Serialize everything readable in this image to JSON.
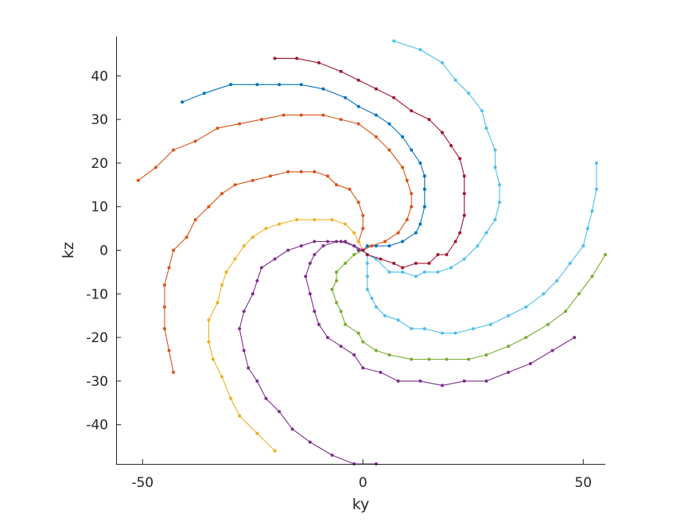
{
  "chart_data": {
    "type": "line",
    "title": "",
    "xlabel": "ky",
    "ylabel": "kz",
    "xlim": [
      -56,
      55
    ],
    "ylim": [
      -49,
      49
    ],
    "xticks": [
      -50,
      0,
      50
    ],
    "yticks": [
      -40,
      -30,
      -20,
      -10,
      0,
      10,
      20,
      30,
      40
    ],
    "grid": false,
    "legend": "none",
    "series": [
      {
        "color": "#0072BD",
        "points": [
          [
            0,
            0
          ],
          [
            1,
            1
          ],
          [
            3,
            1
          ],
          [
            6,
            1
          ],
          [
            9,
            2
          ],
          [
            12,
            4
          ],
          [
            13,
            6
          ],
          [
            14,
            10
          ],
          [
            14,
            14
          ],
          [
            14,
            17
          ],
          [
            13,
            20
          ],
          [
            11,
            23
          ],
          [
            9,
            26
          ],
          [
            6,
            29
          ],
          [
            3,
            31
          ],
          [
            -1,
            33
          ],
          [
            -4,
            35
          ],
          [
            -9,
            37
          ],
          [
            -14,
            38
          ],
          [
            -19,
            38
          ],
          [
            -24,
            38
          ],
          [
            -30,
            38
          ],
          [
            -36,
            36
          ],
          [
            -41,
            34
          ]
        ]
      },
      {
        "color": "#D95319",
        "points": [
          [
            0,
            0
          ],
          [
            2,
            1
          ],
          [
            5,
            2
          ],
          [
            8,
            4
          ],
          [
            10,
            7
          ],
          [
            11,
            10
          ],
          [
            11,
            13
          ],
          [
            10,
            16
          ],
          [
            9,
            19
          ],
          [
            6,
            23
          ],
          [
            3,
            26
          ],
          [
            -1,
            29
          ],
          [
            -5,
            30
          ],
          [
            -9,
            31
          ],
          [
            -14,
            31
          ],
          [
            -18,
            31
          ],
          [
            -23,
            30
          ],
          [
            -28,
            29
          ],
          [
            -33,
            28
          ],
          [
            -38,
            25
          ],
          [
            -43,
            23
          ],
          [
            -47,
            19
          ],
          [
            -51,
            16
          ]
        ]
      },
      {
        "color": "#D95319",
        "points": [
          [
            0,
            0
          ],
          [
            -1,
            2
          ],
          [
            0,
            5
          ],
          [
            0,
            8
          ],
          [
            -1,
            11
          ],
          [
            -3,
            14
          ],
          [
            -6,
            15
          ],
          [
            -8,
            17
          ],
          [
            -11,
            18
          ],
          [
            -14,
            18
          ],
          [
            -17,
            18
          ],
          [
            -21,
            17
          ],
          [
            -25,
            16
          ],
          [
            -29,
            15
          ],
          [
            -32,
            13
          ],
          [
            -35,
            10
          ],
          [
            -38,
            7
          ],
          [
            -40,
            3
          ],
          [
            -43,
            0
          ],
          [
            -44,
            -4
          ],
          [
            -45,
            -8
          ],
          [
            -45,
            -13
          ],
          [
            -45,
            -18
          ],
          [
            -44,
            -23
          ],
          [
            -43,
            -28
          ]
        ]
      },
      {
        "color": "#EDB120",
        "points": [
          [
            0,
            0
          ],
          [
            -1,
            2
          ],
          [
            -2,
            4
          ],
          [
            -4,
            6
          ],
          [
            -7,
            7
          ],
          [
            -11,
            7
          ],
          [
            -15,
            7
          ],
          [
            -19,
            6
          ],
          [
            -22,
            5
          ],
          [
            -25,
            3
          ],
          [
            -27,
            1
          ],
          [
            -29,
            -2
          ],
          [
            -31,
            -5
          ],
          [
            -32,
            -8
          ],
          [
            -33,
            -12
          ],
          [
            -35,
            -16
          ],
          [
            -35,
            -21
          ],
          [
            -34,
            -25
          ],
          [
            -32,
            -29
          ],
          [
            -30,
            -34
          ],
          [
            -28,
            -38
          ],
          [
            -24,
            -42
          ],
          [
            -20,
            -46
          ]
        ]
      },
      {
        "color": "#7E2F8E",
        "points": [
          [
            0,
            0
          ],
          [
            -2,
            1
          ],
          [
            -5,
            2
          ],
          [
            -8,
            2
          ],
          [
            -11,
            2
          ],
          [
            -14,
            1
          ],
          [
            -17,
            0
          ],
          [
            -20,
            -2
          ],
          [
            -23,
            -4
          ],
          [
            -24,
            -7
          ],
          [
            -25,
            -10
          ],
          [
            -27,
            -14
          ],
          [
            -28,
            -18
          ],
          [
            -27,
            -23
          ],
          [
            -26,
            -27
          ],
          [
            -24,
            -30
          ],
          [
            -22,
            -34
          ],
          [
            -19,
            -37
          ],
          [
            -16,
            -41
          ],
          [
            -12,
            -44
          ],
          [
            -7,
            -47
          ],
          [
            -2,
            -49
          ],
          [
            3,
            -49
          ]
        ]
      },
      {
        "color": "#7E2F8E",
        "points": [
          [
            0,
            0
          ],
          [
            -1,
            0
          ],
          [
            -2,
            1
          ],
          [
            -4,
            2
          ],
          [
            -6,
            2
          ],
          [
            -9,
            1
          ],
          [
            -11,
            -1
          ],
          [
            -12,
            -3
          ],
          [
            -13,
            -6
          ],
          [
            -12,
            -10
          ],
          [
            -11,
            -14
          ],
          [
            -10,
            -17
          ],
          [
            -8,
            -20
          ],
          [
            -5,
            -22
          ],
          [
            -2,
            -24
          ],
          [
            0,
            -27
          ],
          [
            4,
            -28
          ],
          [
            8,
            -30
          ],
          [
            13,
            -30
          ],
          [
            18,
            -31
          ],
          [
            23,
            -30
          ],
          [
            28,
            -30
          ],
          [
            33,
            -28
          ],
          [
            38,
            -26
          ],
          [
            43,
            -23
          ],
          [
            48,
            -20
          ]
        ]
      },
      {
        "color": "#77AC30",
        "points": [
          [
            0,
            0
          ],
          [
            -2,
            -1
          ],
          [
            -4,
            -3
          ],
          [
            -6,
            -5
          ],
          [
            -6,
            -7
          ],
          [
            -7,
            -9
          ],
          [
            -6,
            -12
          ],
          [
            -5,
            -14
          ],
          [
            -4,
            -17
          ],
          [
            -1,
            -19
          ],
          [
            0,
            -21
          ],
          [
            3,
            -23
          ],
          [
            6,
            -24
          ],
          [
            11,
            -25
          ],
          [
            15,
            -25
          ],
          [
            19,
            -25
          ],
          [
            24,
            -25
          ],
          [
            28,
            -24
          ],
          [
            33,
            -22
          ],
          [
            37,
            -20
          ],
          [
            42,
            -17
          ],
          [
            46,
            -14
          ],
          [
            49,
            -10
          ],
          [
            52,
            -6
          ],
          [
            55,
            -1
          ]
        ]
      },
      {
        "color": "#4DBEEE",
        "points": [
          [
            0,
            0
          ],
          [
            1,
            -1
          ],
          [
            1,
            -3
          ],
          [
            1,
            -6
          ],
          [
            1,
            -9
          ],
          [
            2,
            -11
          ],
          [
            3,
            -13
          ],
          [
            5,
            -15
          ],
          [
            8,
            -16
          ],
          [
            11,
            -18
          ],
          [
            14,
            -18
          ],
          [
            18,
            -19
          ],
          [
            21,
            -19
          ],
          [
            25,
            -18
          ],
          [
            29,
            -17
          ],
          [
            33,
            -15
          ],
          [
            37,
            -13
          ],
          [
            41,
            -10
          ],
          [
            44,
            -7
          ],
          [
            47,
            -3
          ],
          [
            50,
            1
          ],
          [
            51,
            5
          ],
          [
            52,
            9
          ],
          [
            53,
            14
          ],
          [
            53,
            20
          ]
        ]
      },
      {
        "color": "#4DBEEE",
        "points": [
          [
            0,
            0
          ],
          [
            1,
            -1
          ],
          [
            3,
            -2
          ],
          [
            6,
            -5
          ],
          [
            9,
            -5
          ],
          [
            12,
            -6
          ],
          [
            14,
            -5
          ],
          [
            17,
            -5
          ],
          [
            20,
            -4
          ],
          [
            23,
            -2
          ],
          [
            26,
            1
          ],
          [
            28,
            4
          ],
          [
            30,
            7
          ],
          [
            31,
            11
          ],
          [
            31,
            15
          ],
          [
            30,
            19
          ],
          [
            30,
            23
          ],
          [
            28,
            28
          ],
          [
            27,
            32
          ],
          [
            24,
            36
          ],
          [
            21,
            39
          ],
          [
            18,
            43
          ],
          [
            13,
            46
          ],
          [
            7,
            48
          ]
        ]
      },
      {
        "color": "#A2142F",
        "points": [
          [
            0,
            0
          ],
          [
            1,
            -1
          ],
          [
            4,
            -2
          ],
          [
            7,
            -3
          ],
          [
            9,
            -4
          ],
          [
            12,
            -3
          ],
          [
            15,
            -3
          ],
          [
            17,
            -1
          ],
          [
            19,
            -1
          ],
          [
            21,
            2
          ],
          [
            22,
            4
          ],
          [
            23,
            8
          ],
          [
            23,
            13
          ],
          [
            23,
            17
          ],
          [
            22,
            21
          ],
          [
            20,
            24
          ],
          [
            18,
            27
          ],
          [
            15,
            30
          ],
          [
            11,
            32
          ],
          [
            7,
            35
          ],
          [
            3,
            37
          ],
          [
            -1,
            39
          ],
          [
            -5,
            41
          ],
          [
            -10,
            43
          ],
          [
            -15,
            44
          ],
          [
            -20,
            44
          ]
        ]
      }
    ]
  }
}
